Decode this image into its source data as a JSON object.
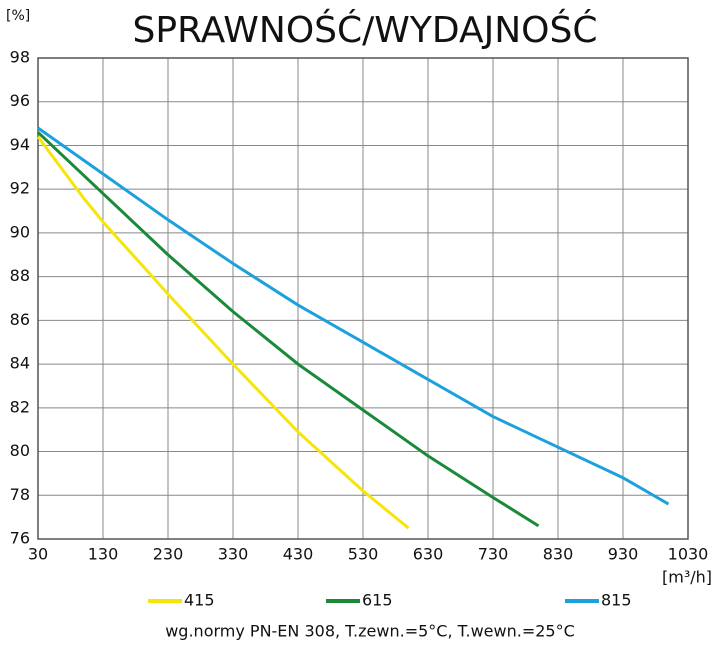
{
  "chart_data": {
    "type": "line",
    "title": "SPRAWNOŚĆ/WYDAJNOŚĆ",
    "y_label": "[%]",
    "x_label": "[m³/h]",
    "note": "wg.normy PN-EN 308, T.zewn.=5°C, T.wewn.=25°C",
    "xlim": [
      30,
      1030
    ],
    "xticks": [
      30,
      130,
      230,
      330,
      430,
      530,
      630,
      730,
      830,
      930,
      1030
    ],
    "ylim": [
      76,
      98
    ],
    "yticks": [
      76,
      78,
      80,
      82,
      84,
      86,
      88,
      90,
      92,
      94,
      96,
      98
    ],
    "grid": true,
    "series": [
      {
        "name": "415",
        "color": "#f5e50a",
        "x": [
          30,
          100,
          130,
          200,
          230,
          330,
          430,
          530,
          600
        ],
        "values": [
          94.4,
          91.6,
          90.5,
          88.2,
          87.2,
          84.0,
          80.9,
          78.2,
          76.5
        ]
      },
      {
        "name": "615",
        "color": "#1a8a3a",
        "x": [
          30,
          130,
          230,
          330,
          430,
          530,
          630,
          730,
          800
        ],
        "values": [
          94.6,
          91.8,
          89.0,
          86.4,
          84.0,
          81.9,
          79.8,
          77.9,
          76.6
        ]
      },
      {
        "name": "815",
        "color": "#1da1dc",
        "x": [
          30,
          130,
          230,
          330,
          430,
          530,
          630,
          730,
          830,
          930,
          1000
        ],
        "values": [
          94.8,
          92.7,
          90.6,
          88.6,
          86.7,
          85.0,
          83.3,
          81.6,
          80.2,
          78.8,
          77.6
        ]
      }
    ]
  }
}
